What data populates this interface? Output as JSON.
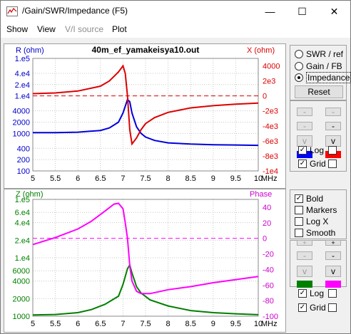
{
  "window": {
    "title": "/Gain/SWR/Impedance (F5)",
    "minimize_glyph": "—",
    "maximize_glyph": "☐",
    "close_glyph": "✕"
  },
  "menu": [
    "Show",
    "View",
    "V/I source",
    "Plot"
  ],
  "plot_title": "40m_ef_yamakeisya10.out",
  "top_chart": {
    "left_axis_label": "R (ohm)",
    "right_axis_label": "X (ohm)",
    "left_ticks": [
      "1.e5",
      "4.e4",
      "2.e4",
      "1.e4",
      "4000",
      "2000",
      "1000",
      "400",
      "200",
      "100"
    ],
    "right_ticks": [
      "4000",
      "2e3",
      "0",
      "-2e3",
      "-4e3",
      "-6e3",
      "-8e3",
      "-1e4"
    ],
    "x_ticks": [
      "5",
      "5.5",
      "6",
      "6.5",
      "7",
      "7.5",
      "8",
      "8.5",
      "9",
      "9.5",
      "10"
    ],
    "x_unit": "MHz"
  },
  "bottom_chart": {
    "left_axis_label": "Z (ohm)",
    "right_axis_label": "Phase",
    "left_ticks": [
      "1.e5",
      "6.e4",
      "4.e4",
      "2.e4",
      "1.e4",
      "6000",
      "4000",
      "2000",
      "1000"
    ],
    "right_ticks": [
      "40",
      "20",
      "0",
      "-20",
      "-40",
      "-60",
      "-80",
      "-100"
    ],
    "x_ticks": [
      "5",
      "5.5",
      "6",
      "6.5",
      "7",
      "7.5",
      "8",
      "8.5",
      "9",
      "9.5",
      "10"
    ],
    "x_unit": "MHz"
  },
  "colors": {
    "r_curve": "#0000dd",
    "x_curve": "#dd0000",
    "z_curve": "#008000",
    "phase_curve": "#ff00ff",
    "left_axis_top": "#0000cc",
    "right_axis_top": "#dd0000",
    "left_axis_bottom": "#008000",
    "right_axis_bottom": "#cc00cc"
  },
  "mode_panel": {
    "options": [
      {
        "label": "SWR / ref",
        "selected": false
      },
      {
        "label": "Gain / FB",
        "selected": false
      },
      {
        "label": "Impedance",
        "selected": true
      }
    ],
    "reset_label": "Reset"
  },
  "top_controls": {
    "btn_minus_1": "-",
    "btn_minus_2": "-",
    "btn_v_1": "v",
    "btn_v_2": "v",
    "swatch_left": "#0000ff",
    "swatch_right": "#ff0000",
    "log_label": "Log",
    "log_checked": true,
    "log2_checked": false,
    "grid_label": "Grid",
    "grid_checked": true,
    "grid2_checked": false
  },
  "options_panel": {
    "items": [
      {
        "label": "Bold",
        "checked": true
      },
      {
        "label": "Markers",
        "checked": false
      },
      {
        "label": "Log X",
        "checked": false
      },
      {
        "label": "Smooth",
        "checked": false
      }
    ]
  },
  "bottom_controls": {
    "btn_plus_1": "+",
    "btn_plus_2": "+",
    "btn_minus_1": "-",
    "btn_minus_2": "-",
    "btn_v_1": "v",
    "btn_v_2": "v",
    "swatch_left": "#008000",
    "swatch_right": "#ff00ff",
    "log_label": "Log",
    "log_checked": true,
    "log2_checked": false,
    "grid_label": "Grid",
    "grid_checked": true,
    "grid2_checked": false
  },
  "chart_data": [
    {
      "type": "line",
      "title": "40m_ef_yamakeisya10.out",
      "xlabel": "MHz",
      "xlim": [
        5,
        10
      ],
      "y_left_label": "R (ohm)",
      "y_left_scale": "log",
      "y_left_lim": [
        100,
        100000
      ],
      "y_right_label": "X (ohm)",
      "y_right_lim": [
        -10000,
        5000
      ],
      "grid": true,
      "series": [
        {
          "name": "R (ohm)",
          "axis": "left",
          "color": "#0000dd",
          "x": [
            5.0,
            5.5,
            6.0,
            6.5,
            6.7,
            6.9,
            7.0,
            7.1,
            7.15,
            7.2,
            7.3,
            7.4,
            7.5,
            7.7,
            8.0,
            8.5,
            9.0,
            9.5,
            10.0
          ],
          "y": [
            1050,
            1050,
            1080,
            1200,
            1400,
            2000,
            3500,
            8000,
            7000,
            3500,
            1500,
            1000,
            800,
            650,
            560,
            520,
            500,
            490,
            480
          ]
        },
        {
          "name": "X (ohm)",
          "axis": "right",
          "color": "#dd0000",
          "x": [
            5.0,
            5.5,
            6.0,
            6.5,
            6.7,
            6.9,
            7.0,
            7.05,
            7.1,
            7.15,
            7.2,
            7.3,
            7.4,
            7.5,
            7.7,
            8.0,
            8.5,
            9.0,
            9.5,
            10.0
          ],
          "y": [
            300,
            400,
            650,
            1300,
            2000,
            3200,
            4000,
            3000,
            0,
            -4500,
            -6400,
            -5600,
            -4500,
            -3700,
            -2900,
            -2200,
            -1600,
            -1300,
            -1100,
            -950
          ]
        }
      ]
    },
    {
      "type": "line",
      "xlabel": "MHz",
      "xlim": [
        5,
        10
      ],
      "y_left_label": "Z (ohm)",
      "y_left_scale": "log",
      "y_left_lim": [
        1000,
        100000
      ],
      "y_right_label": "Phase",
      "y_right_lim": [
        -100,
        50
      ],
      "grid": true,
      "series": [
        {
          "name": "Z (ohm)",
          "axis": "left",
          "color": "#008000",
          "x": [
            5.0,
            5.5,
            6.0,
            6.3,
            6.6,
            6.9,
            7.0,
            7.1,
            7.15,
            7.2,
            7.3,
            7.4,
            7.6,
            8.0,
            8.5,
            9.0,
            9.5,
            10.0
          ],
          "y": [
            1050,
            1070,
            1150,
            1300,
            1600,
            2200,
            3500,
            6500,
            7500,
            5500,
            3200,
            2500,
            1900,
            1500,
            1250,
            1150,
            1100,
            1060
          ]
        },
        {
          "name": "Phase",
          "axis": "right",
          "color": "#ff00ff",
          "x": [
            5.0,
            5.5,
            6.0,
            6.3,
            6.6,
            6.8,
            6.9,
            7.0,
            7.05,
            7.1,
            7.15,
            7.2,
            7.3,
            7.4,
            7.6,
            8.0,
            8.5,
            9.0,
            9.5,
            10.0
          ],
          "y": [
            -8,
            1,
            12,
            22,
            35,
            44,
            45,
            38,
            20,
            0,
            -35,
            -55,
            -68,
            -71,
            -71,
            -66,
            -62,
            -57,
            -53,
            -49
          ]
        }
      ]
    }
  ]
}
